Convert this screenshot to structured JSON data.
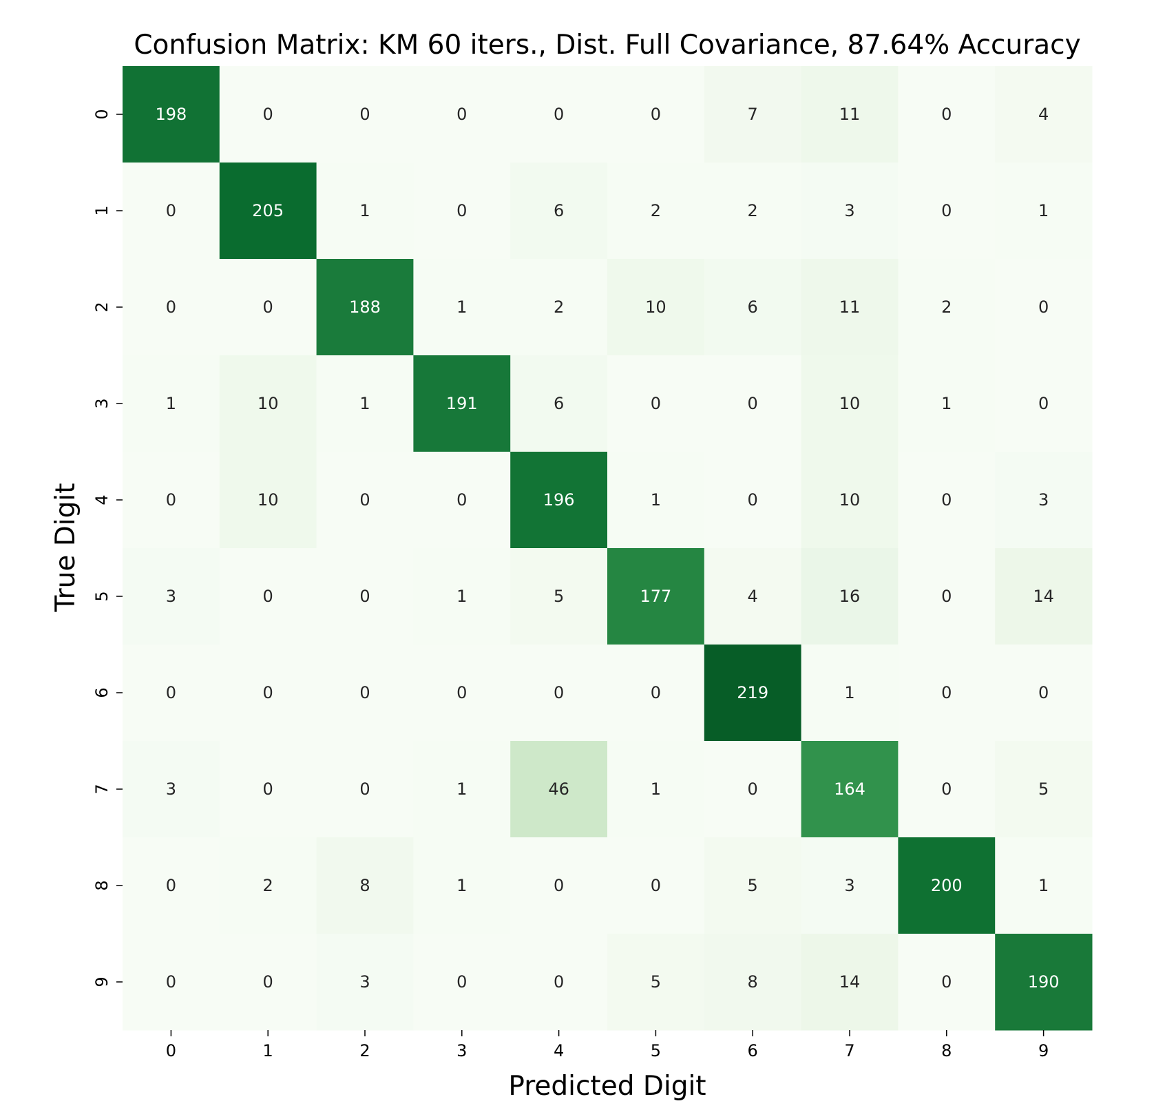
{
  "chart_data": {
    "type": "heatmap",
    "title": "Confusion Matrix: KM 60 iters., Dist. Full Covariance, 87.64% Accuracy",
    "xlabel": "Predicted Digit",
    "ylabel": "True Digit",
    "x_categories": [
      "0",
      "1",
      "2",
      "3",
      "4",
      "5",
      "6",
      "7",
      "8",
      "9"
    ],
    "y_categories": [
      "0",
      "1",
      "2",
      "3",
      "4",
      "5",
      "6",
      "7",
      "8",
      "9"
    ],
    "values": [
      [
        198,
        0,
        0,
        0,
        0,
        0,
        7,
        11,
        0,
        4
      ],
      [
        0,
        205,
        1,
        0,
        6,
        2,
        2,
        3,
        0,
        1
      ],
      [
        0,
        0,
        188,
        1,
        2,
        10,
        6,
        11,
        2,
        0
      ],
      [
        1,
        10,
        1,
        191,
        6,
        0,
        0,
        10,
        1,
        0
      ],
      [
        0,
        10,
        0,
        0,
        196,
        1,
        0,
        10,
        0,
        3
      ],
      [
        3,
        0,
        0,
        1,
        5,
        177,
        4,
        16,
        0,
        14
      ],
      [
        0,
        0,
        0,
        0,
        0,
        0,
        219,
        1,
        0,
        0
      ],
      [
        3,
        0,
        0,
        1,
        46,
        1,
        0,
        164,
        0,
        5
      ],
      [
        0,
        2,
        8,
        1,
        0,
        0,
        5,
        3,
        200,
        1
      ],
      [
        0,
        0,
        3,
        0,
        0,
        5,
        8,
        14,
        0,
        190
      ]
    ],
    "colormap": "Greens",
    "color_low": "#f7fcf5",
    "color_high": "#1a4620",
    "grid": false,
    "colorbar": false
  }
}
